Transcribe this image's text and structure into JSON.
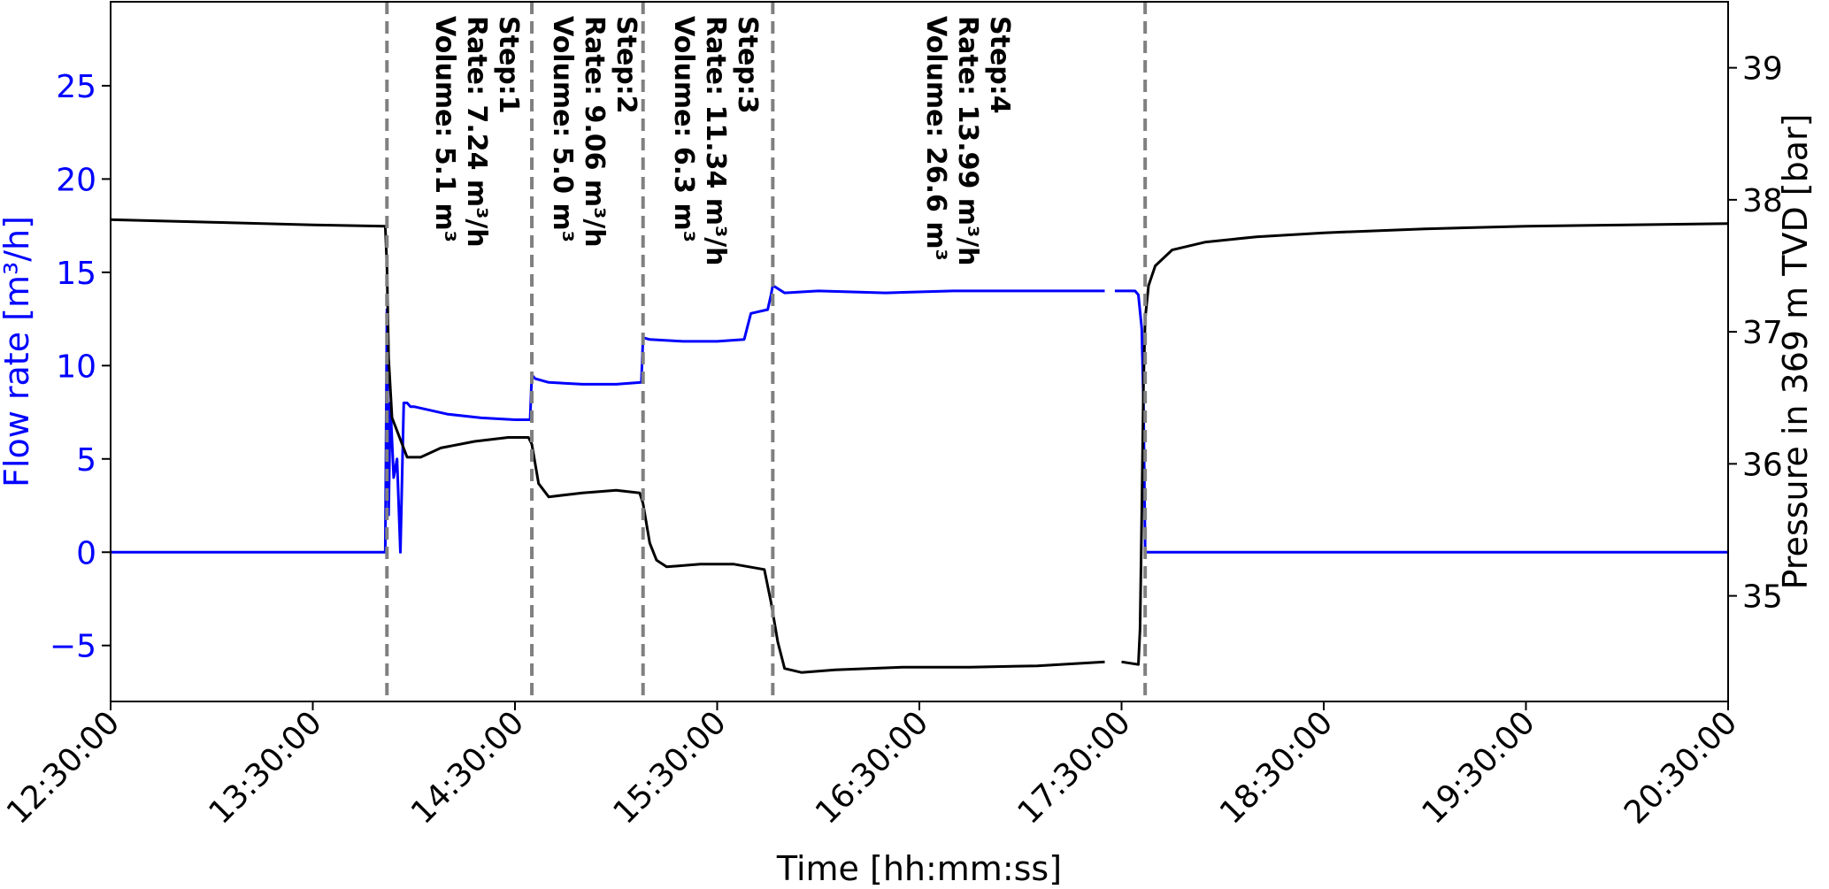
{
  "chart_data": {
    "type": "line",
    "title": "",
    "xlabel": "Time [hh:mm:ss]",
    "ylabel_left": "Flow rate [m³/h]",
    "ylabel_right": "Pressure in 369 m TVD [bar]",
    "x_tick_labels": [
      "12:30:00",
      "13:30:00",
      "14:30:00",
      "15:30:00",
      "16:30:00",
      "17:30:00",
      "18:30:00",
      "19:30:00",
      "20:30:00"
    ],
    "x_range_minutes": [
      750,
      1230
    ],
    "y_left_ticks": [
      -5,
      0,
      5,
      10,
      15,
      20,
      25
    ],
    "y_left_range": [
      -8,
      29.5
    ],
    "y_right_ticks": [
      35,
      36,
      37,
      38,
      39
    ],
    "y_right_range": [
      34.2,
      39.5
    ],
    "grid": false,
    "colors": {
      "flow": "#0000ff",
      "pressure": "#000000",
      "step_lines": "#808080"
    },
    "step_lines_minutes": [
      832,
      875,
      908,
      946.5,
      1057
    ],
    "annotations": [
      {
        "lines": [
          "Step:1",
          "Rate: 7.24 m³/h",
          "Volume: 5.1 m³"
        ]
      },
      {
        "lines": [
          "Step:2",
          "Rate: 9.06 m³/h",
          "Volume: 5.0 m³"
        ]
      },
      {
        "lines": [
          "Step:3",
          "Rate: 11.34 m³/h",
          "Volume: 6.3 m³"
        ]
      },
      {
        "lines": [
          "Step:4",
          "Rate: 13.99 m³/h",
          "Volume: 26.6 m³"
        ]
      }
    ],
    "series": [
      {
        "axis": "left",
        "x_minutes": [
          750,
          831.5,
          832,
          832.5,
          833,
          834,
          835,
          836,
          837,
          838,
          839,
          840,
          850,
          860,
          870,
          874.5,
          875,
          876,
          880,
          890,
          900,
          907.5,
          908,
          910,
          920,
          930,
          938,
          940,
          945,
          946,
          946.5,
          950,
          960,
          980,
          1000,
          1020,
          1040,
          1045
        ],
        "y": [
          0,
          0,
          13,
          2,
          8,
          4,
          5,
          0,
          8,
          8,
          7.8,
          7.8,
          7.4,
          7.2,
          7.1,
          7.1,
          9.5,
          9.3,
          9.1,
          9.0,
          9.0,
          9.1,
          11.5,
          11.4,
          11.3,
          11.3,
          11.4,
          12.8,
          13.0,
          13.8,
          14.3,
          13.9,
          14.0,
          13.9,
          14.0,
          14.0,
          14.0,
          14.0
        ]
      },
      {
        "axis": "left",
        "x_minutes": [
          1048,
          1054,
          1055,
          1056,
          1056.5,
          1057,
          1060,
          1230
        ],
        "y": [
          14.0,
          14.0,
          13.8,
          12,
          8,
          0,
          0,
          0
        ]
      },
      {
        "axis": "right",
        "x_minutes": [
          750,
          780,
          810,
          831.5,
          832,
          832.5,
          833.5,
          835,
          838,
          842,
          848,
          858,
          868,
          874,
          875,
          877,
          880,
          890,
          900,
          907,
          908,
          910,
          912,
          915,
          925,
          935,
          944,
          946,
          948,
          950,
          955,
          965,
          985,
          1005,
          1025,
          1045
        ],
        "y": [
          37.85,
          37.83,
          37.81,
          37.8,
          37.5,
          36.8,
          36.35,
          36.25,
          36.05,
          36.05,
          36.12,
          36.17,
          36.2,
          36.2,
          36.15,
          35.85,
          35.75,
          35.78,
          35.8,
          35.78,
          35.7,
          35.4,
          35.27,
          35.22,
          35.24,
          35.24,
          35.2,
          34.95,
          34.65,
          34.45,
          34.42,
          34.44,
          34.46,
          34.46,
          34.47,
          34.5
        ]
      },
      {
        "axis": "right",
        "x_minutes": [
          1050,
          1055,
          1055.5,
          1056,
          1056.5,
          1057,
          1058,
          1060,
          1065,
          1075,
          1090,
          1110,
          1140,
          1170,
          1200,
          1230
        ],
        "y": [
          34.5,
          34.48,
          34.75,
          35.6,
          36.6,
          37.1,
          37.35,
          37.5,
          37.62,
          37.68,
          37.72,
          37.75,
          37.78,
          37.8,
          37.81,
          37.82
        ]
      }
    ]
  }
}
